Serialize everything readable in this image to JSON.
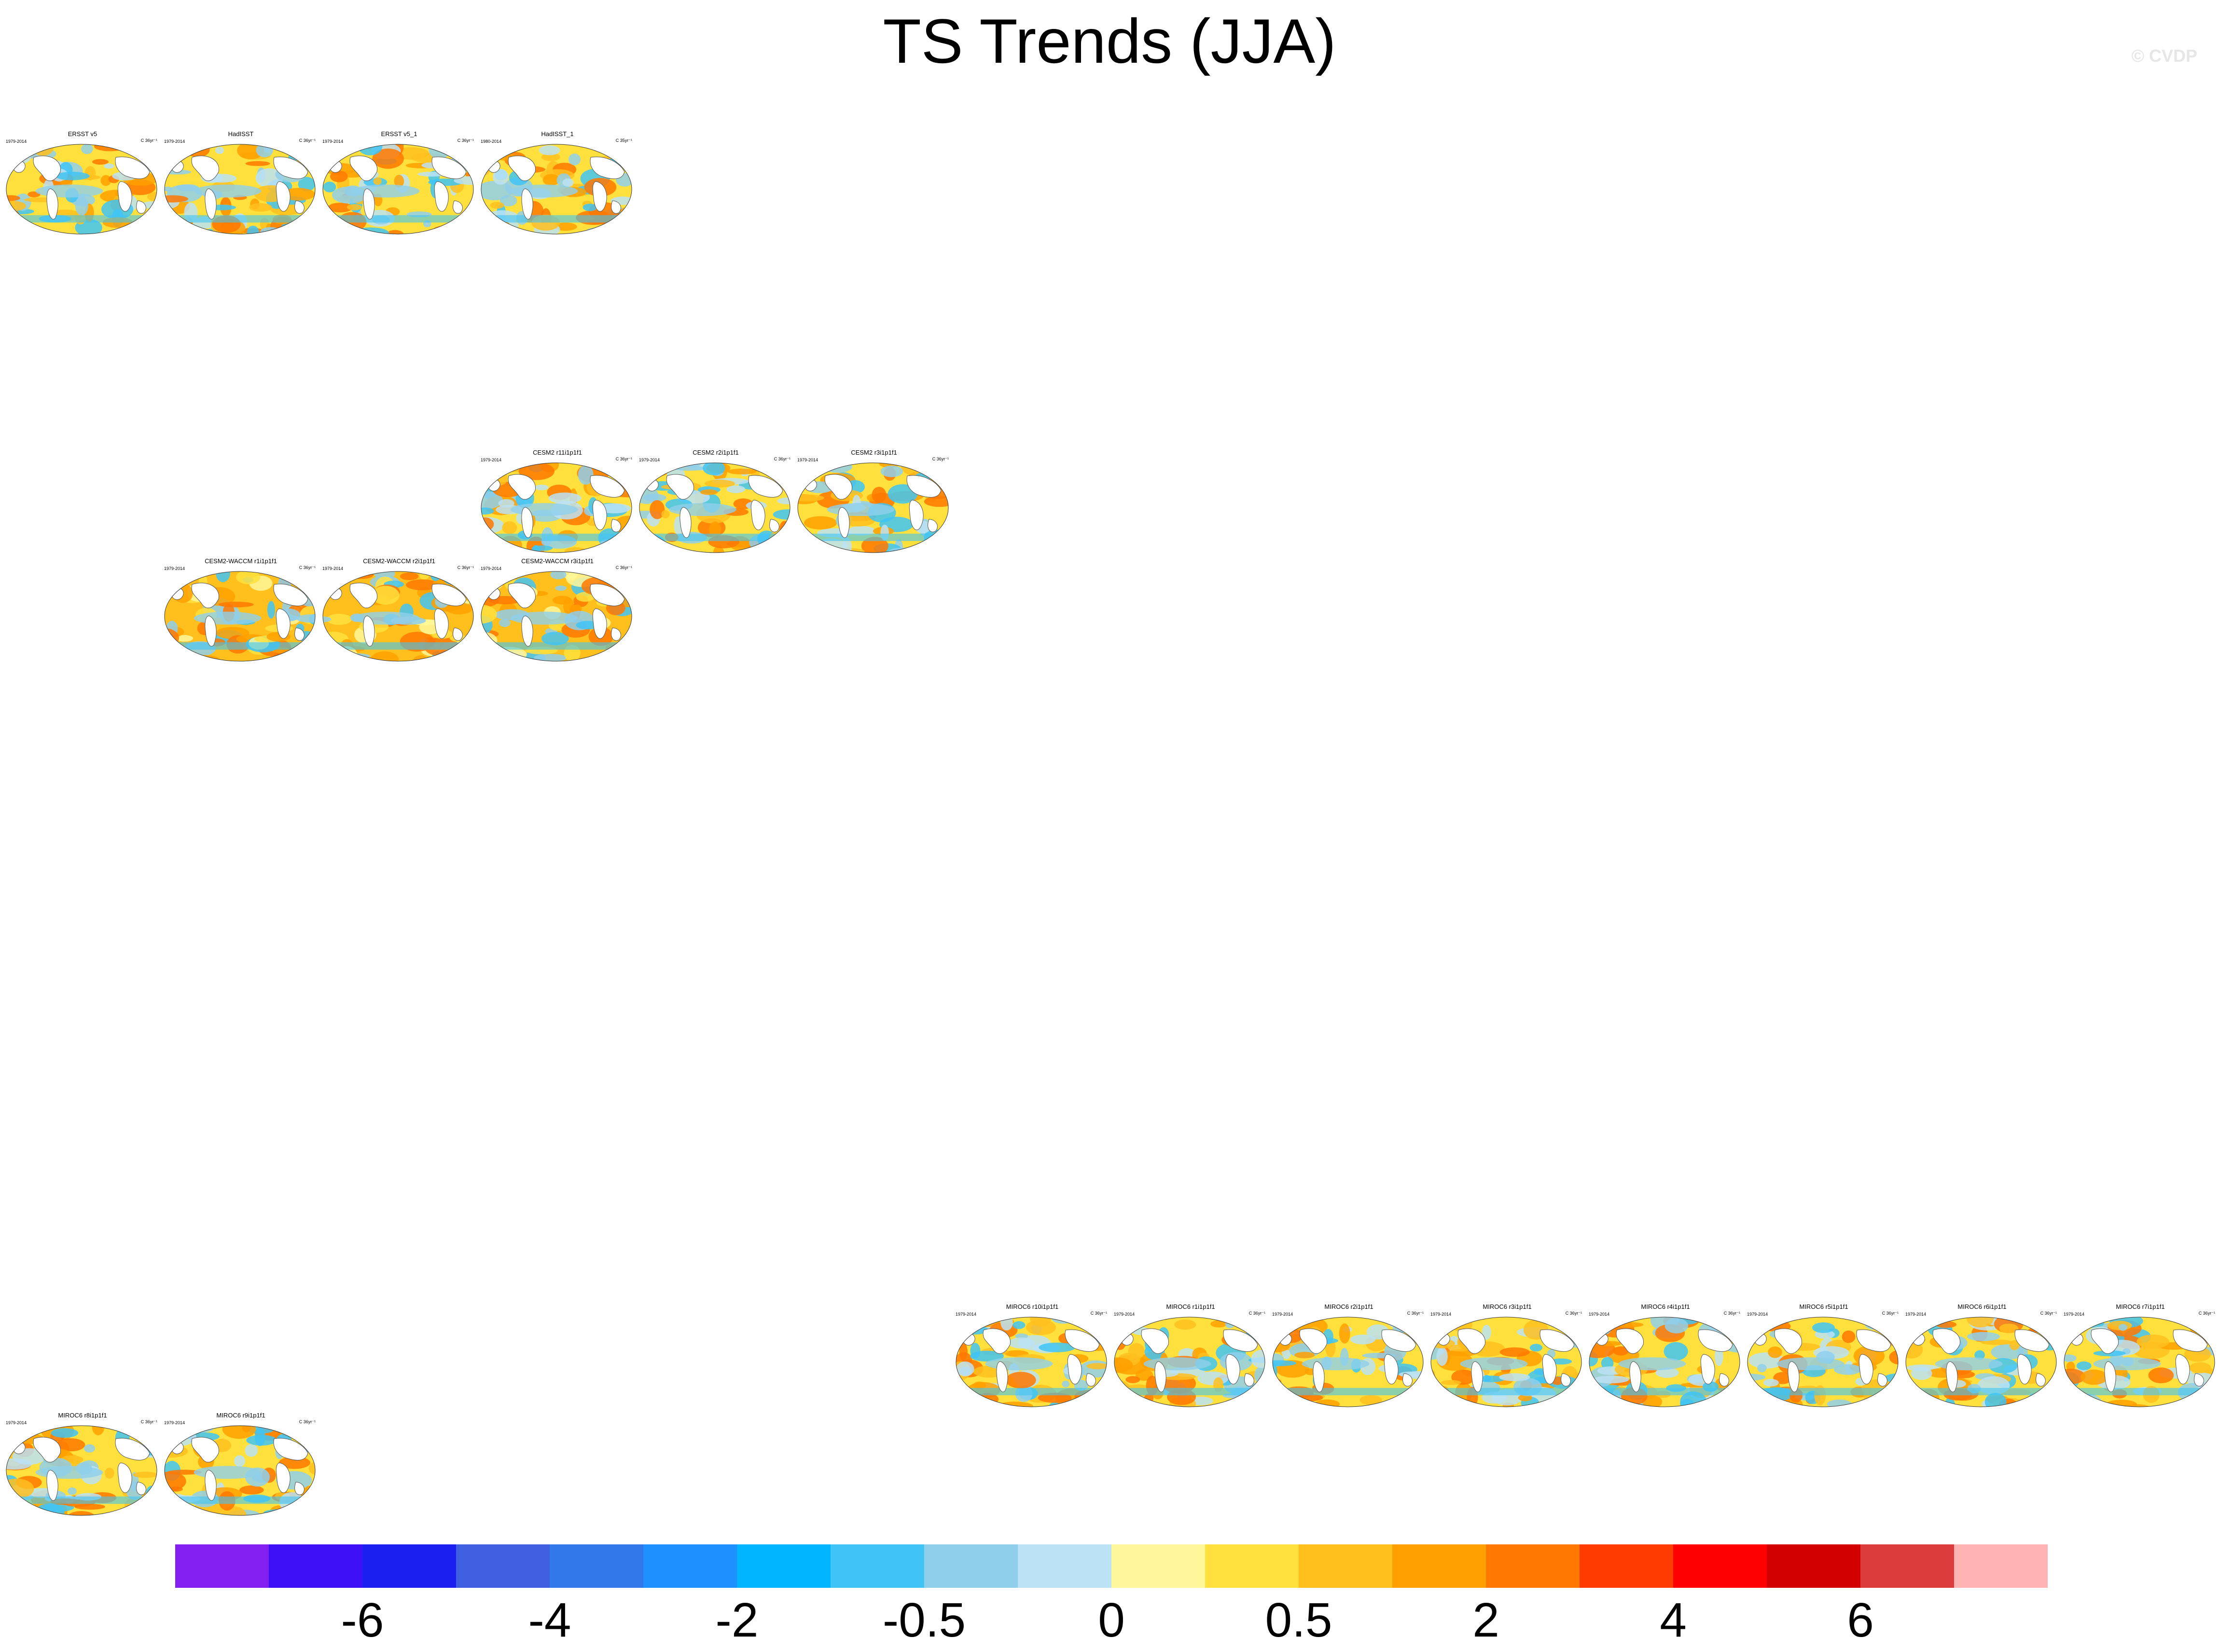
{
  "title": "TS Trends (JJA)",
  "copyright": "© CVDP",
  "units": "C 36yr⁻¹",
  "panels": [
    {
      "title": "ERSST v5",
      "period": "1979-2014",
      "units": "C 36yr⁻¹",
      "pattern": "obs"
    },
    {
      "title": "HadISST",
      "period": "1979-2014",
      "units": "C 36yr⁻¹",
      "pattern": "obs"
    },
    {
      "title": "ERSST v5_1",
      "period": "1979-2014",
      "units": "C 36yr⁻¹",
      "pattern": "obs"
    },
    {
      "title": "HadISST_1",
      "period": "1980-2014",
      "units": "C 35yr⁻¹",
      "pattern": "obs"
    },
    {
      "title": "CESM2 r11i1p1f1",
      "period": "1979-2014",
      "units": "C 36yr⁻¹",
      "pattern": "model"
    },
    {
      "title": "CESM2 r2i1p1f1",
      "period": "1979-2014",
      "units": "C 36yr⁻¹",
      "pattern": "model"
    },
    {
      "title": "CESM2 r3i1p1f1",
      "period": "1979-2014",
      "units": "C 36yr⁻¹",
      "pattern": "model"
    },
    {
      "title": "CESM2-WACCM r1i1p1f1",
      "period": "1979-2014",
      "units": "C 36yr⁻¹",
      "pattern": "warm"
    },
    {
      "title": "CESM2-WACCM r2i1p1f1",
      "period": "1979-2014",
      "units": "C 36yr⁻¹",
      "pattern": "warm"
    },
    {
      "title": "CESM2-WACCM r3i1p1f1",
      "period": "1979-2014",
      "units": "C 36yr⁻¹",
      "pattern": "warm"
    },
    {
      "title": "MIROC6 r10i1p1f1",
      "period": "1979-2014",
      "units": "C 36yr⁻¹",
      "pattern": "miroc"
    },
    {
      "title": "MIROC6 r1i1p1f1",
      "period": "1979-2014",
      "units": "C 36yr⁻¹",
      "pattern": "miroc"
    },
    {
      "title": "MIROC6 r2i1p1f1",
      "period": "1979-2014",
      "units": "C 36yr⁻¹",
      "pattern": "miroc"
    },
    {
      "title": "MIROC6 r3i1p1f1",
      "period": "1979-2014",
      "units": "C 36yr⁻¹",
      "pattern": "miroc"
    },
    {
      "title": "MIROC6 r4i1p1f1",
      "period": "1979-2014",
      "units": "C 36yr⁻¹",
      "pattern": "miroc"
    },
    {
      "title": "MIROC6 r5i1p1f1",
      "period": "1979-2014",
      "units": "C 36yr⁻¹",
      "pattern": "miroc"
    },
    {
      "title": "MIROC6 r6i1p1f1",
      "period": "1979-2014",
      "units": "C 36yr⁻¹",
      "pattern": "miroc"
    },
    {
      "title": "MIROC6 r7i1p1f1",
      "period": "1979-2014",
      "units": "C 36yr⁻¹",
      "pattern": "miroc"
    },
    {
      "title": "MIROC6 r8i1p1f1",
      "period": "1979-2014",
      "units": "C 36yr⁻¹",
      "pattern": "miroc"
    },
    {
      "title": "MIROC6 r9i1p1f1",
      "period": "1979-2014",
      "units": "C 36yr⁻¹",
      "pattern": "miroc"
    }
  ],
  "colorbar": {
    "colors": [
      "#8220F0",
      "#3C0FF5",
      "#1B1FF0",
      "#3F5FE0",
      "#3378EB",
      "#1E90FF",
      "#00B4FF",
      "#40C4F5",
      "#8FCFEB",
      "#BBE2F5",
      "#FFF799",
      "#FFE03C",
      "#FFC01E",
      "#FFA000",
      "#FF7800",
      "#FF3C00",
      "#FF0000",
      "#D20000",
      "#DC3C3C",
      "#FFB4B4"
    ],
    "labels": [
      "-6",
      "-4",
      "-2",
      "-0.5",
      "0",
      "0.5",
      "2",
      "4",
      "6"
    ]
  }
}
